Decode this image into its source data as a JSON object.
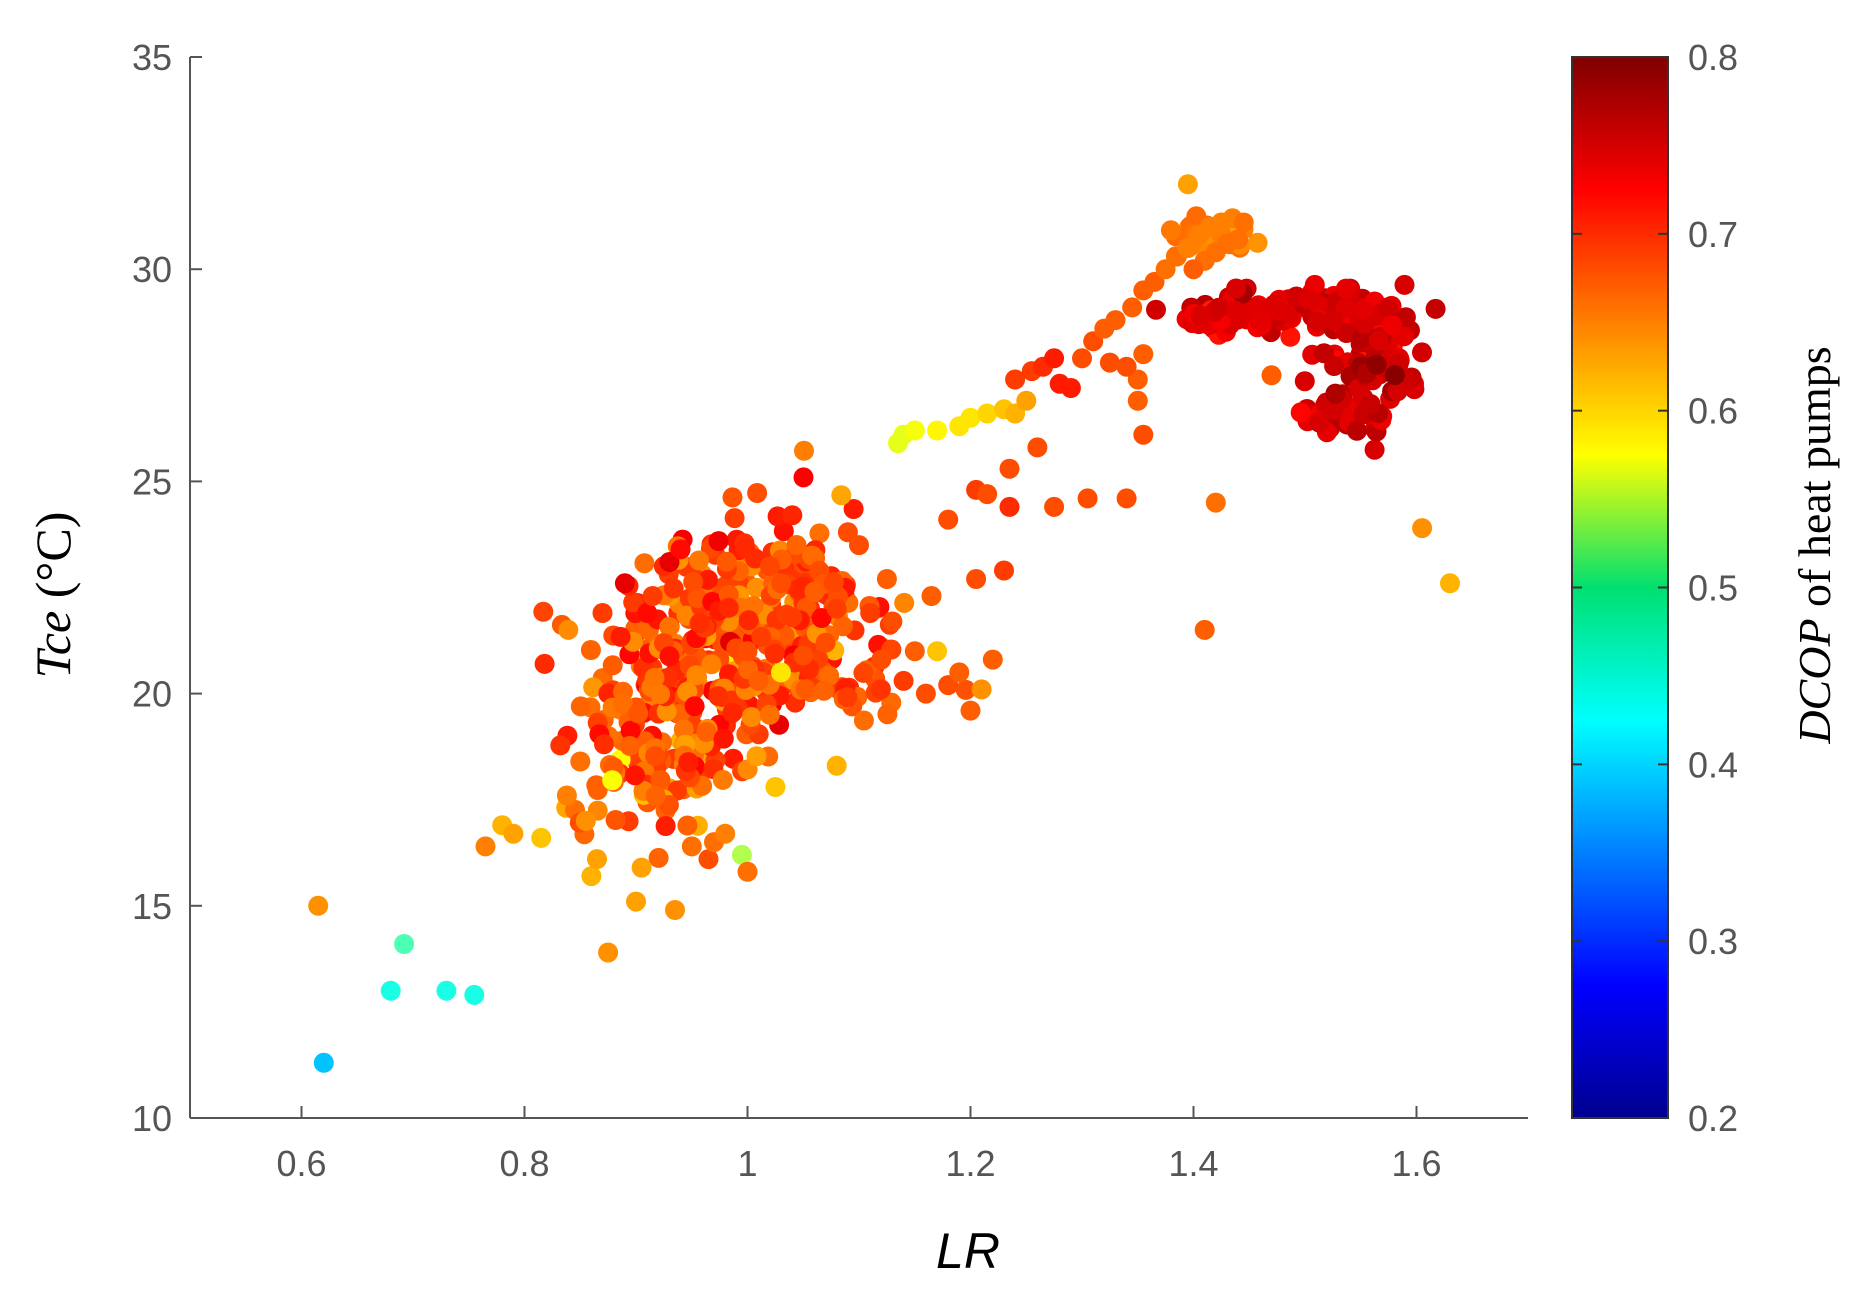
{
  "chart_data": {
    "type": "scatter",
    "xlabel": "LR",
    "ylabel": {
      "italic": "Tce",
      "rest": " (°C)"
    },
    "xlim": [
      0.5,
      1.7
    ],
    "ylim": [
      10,
      35
    ],
    "x_ticks": [
      0.6,
      0.8,
      1,
      1.2,
      1.4,
      1.6
    ],
    "x_tick_labels": [
      "0.6",
      "0.8",
      "1",
      "1.2",
      "1.4",
      "1.6"
    ],
    "y_ticks": [
      10,
      15,
      20,
      25,
      30,
      35
    ],
    "y_tick_labels": [
      "10",
      "15",
      "20",
      "25",
      "30",
      "35"
    ],
    "colorbar": {
      "label": {
        "italic": "DCOP",
        "rest": " of heat pumps"
      },
      "colormap": "jet",
      "range": [
        0.2,
        0.8
      ],
      "ticks": [
        0.2,
        0.3,
        0.4,
        0.5,
        0.6,
        0.7,
        0.8
      ],
      "tick_labels": [
        "0.2",
        "0.3",
        "0.4",
        "0.5",
        "0.6",
        "0.7",
        "0.8"
      ]
    },
    "points": [
      [
        0.62,
        11.3,
        0.39
      ],
      [
        0.615,
        15.0,
        0.64
      ],
      [
        0.68,
        13.0,
        0.44
      ],
      [
        0.692,
        14.1,
        0.47
      ],
      [
        0.73,
        13.0,
        0.44
      ],
      [
        0.755,
        12.9,
        0.44
      ],
      [
        0.765,
        16.4,
        0.65
      ],
      [
        0.78,
        16.9,
        0.62
      ],
      [
        0.79,
        16.7,
        0.63
      ],
      [
        0.815,
        16.6,
        0.61
      ],
      [
        0.818,
        20.7,
        0.7
      ],
      [
        0.838,
        17.6,
        0.65
      ],
      [
        0.85,
        18.4,
        0.66
      ],
      [
        0.855,
        17.0,
        0.64
      ],
      [
        0.86,
        15.7,
        0.62
      ],
      [
        0.865,
        16.1,
        0.63
      ],
      [
        0.87,
        21.9,
        0.69
      ],
      [
        0.875,
        13.9,
        0.64
      ],
      [
        0.89,
        22.6,
        0.74
      ],
      [
        0.9,
        15.1,
        0.63
      ],
      [
        0.905,
        15.9,
        0.63
      ],
      [
        0.91,
        21.9,
        0.72
      ],
      [
        0.915,
        22.3,
        0.69
      ],
      [
        0.925,
        23.0,
        0.7
      ],
      [
        0.93,
        23.1,
        0.74
      ],
      [
        0.94,
        23.4,
        0.72
      ],
      [
        0.935,
        14.9,
        0.64
      ],
      [
        0.95,
        16.4,
        0.66
      ],
      [
        0.965,
        16.1,
        0.68
      ],
      [
        0.97,
        16.5,
        0.66
      ],
      [
        0.98,
        16.7,
        0.65
      ],
      [
        0.995,
        16.2,
        0.53
      ],
      [
        1.0,
        15.8,
        0.66
      ],
      [
        1.025,
        17.8,
        0.61
      ],
      [
        1.03,
        20.5,
        0.59
      ],
      [
        1.08,
        18.3,
        0.62
      ],
      [
        1.0,
        21.0,
        0.68
      ],
      [
        1.01,
        20.3,
        0.67
      ],
      [
        1.02,
        19.5,
        0.66
      ],
      [
        1.03,
        22.6,
        0.68
      ],
      [
        1.04,
        21.8,
        0.69
      ],
      [
        1.05,
        20.9,
        0.68
      ],
      [
        1.06,
        22.4,
        0.67
      ],
      [
        1.07,
        21.2,
        0.68
      ],
      [
        1.08,
        22.0,
        0.69
      ],
      [
        1.09,
        23.8,
        0.68
      ],
      [
        1.1,
        23.5,
        0.68
      ],
      [
        1.11,
        21.9,
        0.69
      ],
      [
        1.12,
        20.8,
        0.68
      ],
      [
        1.125,
        22.7,
        0.67
      ],
      [
        1.13,
        21.7,
        0.68
      ],
      [
        1.14,
        20.3,
        0.69
      ],
      [
        1.15,
        21.0,
        0.67
      ],
      [
        1.16,
        20.0,
        0.68
      ],
      [
        1.17,
        21.0,
        0.61
      ],
      [
        1.18,
        20.2,
        0.68
      ],
      [
        1.19,
        20.5,
        0.67
      ],
      [
        1.2,
        19.6,
        0.67
      ],
      [
        1.21,
        20.1,
        0.64
      ],
      [
        1.22,
        20.8,
        0.67
      ],
      [
        1.165,
        22.3,
        0.67
      ],
      [
        1.205,
        22.7,
        0.68
      ],
      [
        1.23,
        22.9,
        0.69
      ],
      [
        1.18,
        24.1,
        0.68
      ],
      [
        1.205,
        24.8,
        0.69
      ],
      [
        1.215,
        24.7,
        0.68
      ],
      [
        1.235,
        24.4,
        0.7
      ],
      [
        1.235,
        25.3,
        0.68
      ],
      [
        1.26,
        25.8,
        0.68
      ],
      [
        1.275,
        24.4,
        0.68
      ],
      [
        1.305,
        24.6,
        0.68
      ],
      [
        1.34,
        24.6,
        0.68
      ],
      [
        1.355,
        26.1,
        0.68
      ],
      [
        1.35,
        26.9,
        0.67
      ],
      [
        1.35,
        27.4,
        0.67
      ],
      [
        1.355,
        28.0,
        0.67
      ],
      [
        1.325,
        27.8,
        0.68
      ],
      [
        1.34,
        27.7,
        0.68
      ],
      [
        1.41,
        21.5,
        0.67
      ],
      [
        1.42,
        24.5,
        0.66
      ],
      [
        1.47,
        27.5,
        0.67
      ],
      [
        1.395,
        32.0,
        0.63
      ],
      [
        1.605,
        23.9,
        0.64
      ],
      [
        1.63,
        22.6,
        0.62
      ],
      [
        1.135,
        25.9,
        0.56
      ],
      [
        1.14,
        26.1,
        0.56
      ],
      [
        1.15,
        26.2,
        0.57
      ],
      [
        1.17,
        26.2,
        0.58
      ],
      [
        1.19,
        26.3,
        0.59
      ],
      [
        1.2,
        26.5,
        0.59
      ],
      [
        1.215,
        26.6,
        0.6
      ],
      [
        1.23,
        26.7,
        0.61
      ],
      [
        1.24,
        26.6,
        0.62
      ],
      [
        1.25,
        26.9,
        0.63
      ],
      [
        1.24,
        27.4,
        0.69
      ],
      [
        1.255,
        27.6,
        0.69
      ],
      [
        1.265,
        27.7,
        0.7
      ],
      [
        1.275,
        27.9,
        0.71
      ],
      [
        1.28,
        27.3,
        0.71
      ],
      [
        1.29,
        27.2,
        0.71
      ],
      [
        1.3,
        27.9,
        0.68
      ],
      [
        1.31,
        28.3,
        0.68
      ],
      [
        1.32,
        28.6,
        0.67
      ],
      [
        1.33,
        28.8,
        0.67
      ],
      [
        1.345,
        29.1,
        0.67
      ],
      [
        1.355,
        29.5,
        0.67
      ],
      [
        1.365,
        29.7,
        0.67
      ],
      [
        1.375,
        30.0,
        0.66
      ],
      [
        1.385,
        30.3,
        0.66
      ],
      [
        1.395,
        30.5,
        0.65
      ],
      [
        1.405,
        30.8,
        0.65
      ],
      [
        1.415,
        31.0,
        0.65
      ],
      [
        1.425,
        31.1,
        0.65
      ],
      [
        1.435,
        31.2,
        0.65
      ],
      [
        1.445,
        31.1,
        0.66
      ],
      [
        1.44,
        30.7,
        0.66
      ],
      [
        1.43,
        30.6,
        0.66
      ],
      [
        1.42,
        30.4,
        0.66
      ],
      [
        1.41,
        30.2,
        0.66
      ],
      [
        1.4,
        30.0,
        0.67
      ]
    ],
    "clusters": [
      {
        "cx": 0.975,
        "cy": 21.3,
        "sx": 0.055,
        "sy": 1.35,
        "n": 320,
        "rotate": 0.35,
        "c": 0.68,
        "cspread": 0.025
      },
      {
        "cx": 0.92,
        "cy": 18.6,
        "sx": 0.04,
        "sy": 0.9,
        "n": 100,
        "rotate": 0.2,
        "c": 0.67,
        "cspread": 0.025
      },
      {
        "cx": 1.05,
        "cy": 20.2,
        "sx": 0.05,
        "sy": 0.6,
        "n": 60,
        "rotate": 0.0,
        "c": 0.68,
        "cspread": 0.02
      },
      {
        "cx": 1.075,
        "cy": 22.3,
        "sx": 0.03,
        "sy": 0.5,
        "n": 40,
        "rotate": 0.0,
        "c": 0.68,
        "cspread": 0.02
      },
      {
        "cx": 1.43,
        "cy": 28.8,
        "sx": 0.025,
        "sy": 0.25,
        "n": 45,
        "rotate": 0.0,
        "c": 0.74,
        "cspread": 0.012
      },
      {
        "cx": 1.48,
        "cy": 29.1,
        "sx": 0.03,
        "sy": 0.2,
        "n": 40,
        "rotate": 0.0,
        "c": 0.745,
        "cspread": 0.01
      },
      {
        "cx": 1.525,
        "cy": 29.2,
        "sx": 0.02,
        "sy": 0.25,
        "n": 30,
        "rotate": 0.0,
        "c": 0.75,
        "cspread": 0.01
      },
      {
        "cx": 1.555,
        "cy": 28.3,
        "sx": 0.03,
        "sy": 0.6,
        "n": 70,
        "rotate": 0.0,
        "c": 0.75,
        "cspread": 0.012
      },
      {
        "cx": 1.535,
        "cy": 26.6,
        "sx": 0.025,
        "sy": 0.35,
        "n": 30,
        "rotate": 0.0,
        "c": 0.75,
        "cspread": 0.01
      },
      {
        "cx": 1.57,
        "cy": 27.4,
        "sx": 0.02,
        "sy": 0.3,
        "n": 20,
        "rotate": 0.0,
        "c": 0.77,
        "cspread": 0.015
      },
      {
        "cx": 1.425,
        "cy": 30.9,
        "sx": 0.02,
        "sy": 0.25,
        "n": 30,
        "rotate": 0.0,
        "c": 0.65,
        "cspread": 0.012
      }
    ]
  }
}
